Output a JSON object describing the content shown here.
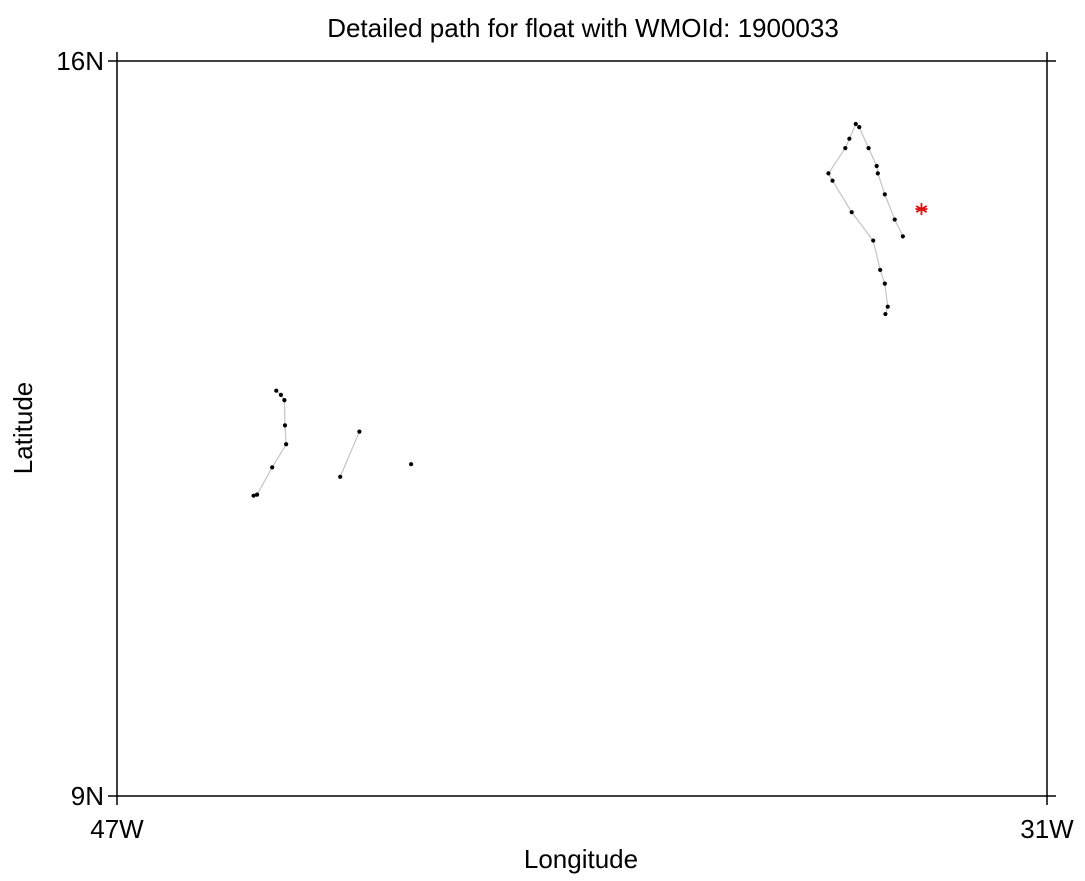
{
  "chart_data": {
    "type": "scatter",
    "title": "Detailed path for float with WMOId: 1900033",
    "xlabel": "Longitude",
    "ylabel": "Latitude",
    "xlim": [
      -47,
      -31
    ],
    "ylim": [
      9,
      16
    ],
    "x_ticks": [
      {
        "value": -47,
        "label": "47W"
      },
      {
        "value": -31,
        "label": "31W"
      }
    ],
    "y_ticks": [
      {
        "value": 9,
        "label": "9N"
      },
      {
        "value": 16,
        "label": "16N"
      }
    ],
    "grid": false,
    "colors": {
      "points": "#000000",
      "path": "#c8c8c8",
      "latest_position": "#dd1111",
      "axes": "#000000"
    },
    "path_segments": [
      [
        [
          -41.94,
          12.16
        ]
      ],
      [
        [
          -44.26,
          12.86
        ],
        [
          -44.18,
          12.82
        ],
        [
          -44.12,
          12.77
        ],
        [
          -44.11,
          12.53
        ],
        [
          -44.09,
          12.35
        ],
        [
          -44.33,
          12.13
        ],
        [
          -44.59,
          11.87
        ],
        [
          -44.65,
          11.86
        ]
      ],
      [
        [
          -42.83,
          12.47
        ],
        [
          -43.16,
          12.04
        ]
      ],
      [
        [
          -33.78,
          13.59
        ],
        [
          -33.74,
          13.66
        ],
        [
          -33.79,
          13.88
        ],
        [
          -33.87,
          14.01
        ],
        [
          -33.99,
          14.29
        ],
        [
          -34.36,
          14.56
        ],
        [
          -34.69,
          14.86
        ],
        [
          -34.76,
          14.93
        ],
        [
          -34.47,
          15.17
        ],
        [
          -34.4,
          15.26
        ],
        [
          -34.29,
          15.4
        ],
        [
          -34.23,
          15.37
        ],
        [
          -34.07,
          15.17
        ],
        [
          -33.93,
          15.0
        ],
        [
          -33.91,
          14.93
        ],
        [
          -33.79,
          14.73
        ],
        [
          -33.62,
          14.49
        ],
        [
          -33.48,
          14.33
        ]
      ]
    ],
    "points": [
      [
        -41.94,
        12.16
      ],
      [
        -44.26,
        12.86
      ],
      [
        -44.18,
        12.82
      ],
      [
        -44.12,
        12.77
      ],
      [
        -44.11,
        12.53
      ],
      [
        -44.09,
        12.35
      ],
      [
        -44.33,
        12.13
      ],
      [
        -44.59,
        11.87
      ],
      [
        -44.65,
        11.86
      ],
      [
        -42.83,
        12.47
      ],
      [
        -43.16,
        12.04
      ],
      [
        -33.78,
        13.59
      ],
      [
        -33.74,
        13.66
      ],
      [
        -33.79,
        13.88
      ],
      [
        -33.87,
        14.01
      ],
      [
        -33.99,
        14.29
      ],
      [
        -34.36,
        14.56
      ],
      [
        -34.69,
        14.86
      ],
      [
        -34.76,
        14.93
      ],
      [
        -34.47,
        15.17
      ],
      [
        -34.4,
        15.26
      ],
      [
        -34.29,
        15.4
      ],
      [
        -34.23,
        15.37
      ],
      [
        -34.07,
        15.17
      ],
      [
        -33.93,
        15.0
      ],
      [
        -33.91,
        14.93
      ],
      [
        -33.79,
        14.73
      ],
      [
        -33.62,
        14.49
      ],
      [
        -33.48,
        14.33
      ]
    ],
    "latest_position": [
      -33.16,
      14.59
    ]
  }
}
